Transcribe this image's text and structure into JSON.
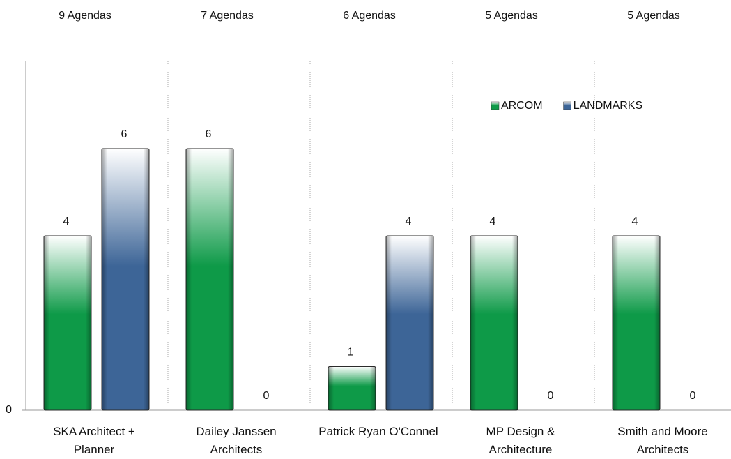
{
  "chart_data": {
    "type": "bar",
    "group_labels": [
      "9 Agendas",
      "7 Agendas",
      "6 Agendas",
      "5 Agendas",
      "5 Agendas"
    ],
    "categories": [
      "SKA Architect + Planner",
      "Dailey Janssen Architects",
      "Patrick Ryan O'Connel",
      "MP Design & Architecture",
      "Smith and Moore Architects"
    ],
    "series": [
      {
        "name": "ARCOM",
        "color": "#0e9a48",
        "values": [
          4,
          6,
          1,
          4,
          4
        ]
      },
      {
        "name": "LANDMARKS",
        "color": "#3d6597",
        "values": [
          6,
          0,
          4,
          0,
          0
        ]
      }
    ],
    "ylim": [
      0,
      8
    ],
    "yticks": [
      0
    ],
    "legend": "top-right"
  }
}
